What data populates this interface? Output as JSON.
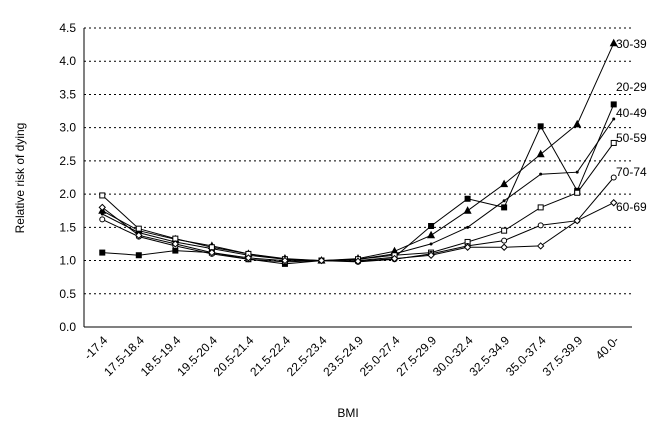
{
  "chart_data": {
    "type": "line",
    "title": "",
    "xlabel": "BMI",
    "ylabel": "Relative risk of dying",
    "ylim": [
      0.0,
      4.5
    ],
    "yticks": [
      "0.0",
      "0.5",
      "1.0",
      "1.5",
      "2.0",
      "2.5",
      "3.0",
      "3.5",
      "4.0",
      "4.5"
    ],
    "grid": true,
    "legend": "line-end-labels",
    "categories": [
      "-17.4",
      "17.5-18.4",
      "18.5-19.4",
      "19.5-20.4",
      "20.5-21.4",
      "21.5-22.4",
      "22.5-23.4",
      "23.5-24.9",
      "25.0-27.4",
      "27.5-29.9",
      "30.0-32.4",
      "32.5-34.9",
      "35.0-37.4",
      "37.5-39.9",
      "40.0-"
    ],
    "series": [
      {
        "name": "30-39",
        "marker": "triangle",
        "values": [
          1.75,
          1.45,
          1.32,
          1.22,
          1.1,
          1.03,
          1.0,
          1.03,
          1.14,
          1.38,
          1.75,
          2.15,
          2.6,
          3.05,
          4.27
        ]
      },
      {
        "name": "20-29",
        "marker": "filled-square",
        "values": [
          1.12,
          1.08,
          1.15,
          1.12,
          1.02,
          0.95,
          1.0,
          1.0,
          1.05,
          1.52,
          1.93,
          1.8,
          3.02,
          2.05,
          3.35
        ]
      },
      {
        "name": "40-49",
        "marker": "small-dot",
        "values": [
          1.7,
          1.42,
          1.28,
          1.18,
          1.08,
          1.02,
          1.0,
          1.02,
          1.1,
          1.25,
          1.5,
          1.9,
          2.3,
          2.33,
          3.13
        ]
      },
      {
        "name": "50-59",
        "marker": "open-square",
        "values": [
          1.98,
          1.48,
          1.33,
          1.2,
          1.1,
          1.02,
          1.0,
          1.02,
          1.08,
          1.12,
          1.28,
          1.45,
          1.8,
          2.02,
          2.77
        ]
      },
      {
        "name": "70-74",
        "marker": "open-circle",
        "values": [
          1.62,
          1.36,
          1.22,
          1.1,
          1.02,
          0.98,
          1.0,
          0.98,
          1.02,
          1.1,
          1.22,
          1.3,
          1.53,
          1.6,
          2.25
        ]
      },
      {
        "name": "60-69",
        "marker": "open-diamond",
        "values": [
          1.8,
          1.38,
          1.25,
          1.12,
          1.04,
          1.0,
          1.0,
          0.99,
          1.03,
          1.08,
          1.2,
          1.2,
          1.22,
          1.6,
          1.87
        ]
      }
    ]
  }
}
